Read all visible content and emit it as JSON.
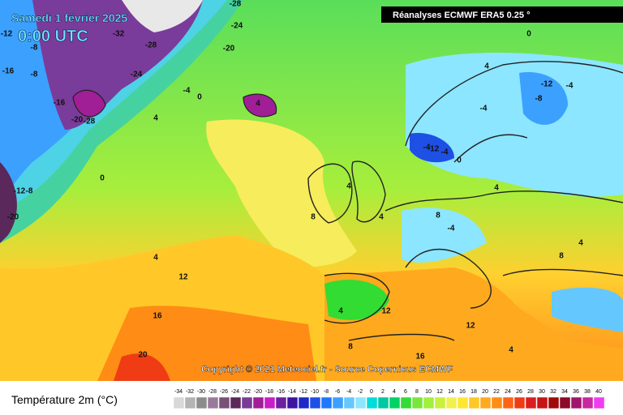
{
  "header": {
    "date": "Samedi 1 février 2025",
    "time": "0:00 UTC",
    "source_badge": "Réanalyses ECMWF ERA5 0.25 °"
  },
  "copyright": "Copyright © 2021 Meteociel.fr - Source Copernicus ECMWF",
  "legend": {
    "title": "Température 2m (°C)",
    "ticks": [
      -34,
      -32,
      -30,
      -28,
      -26,
      -24,
      -22,
      -20,
      -18,
      -16,
      -14,
      -12,
      -10,
      -8,
      -6,
      -4,
      -2,
      0,
      2,
      4,
      6,
      8,
      10,
      12,
      14,
      16,
      18,
      20,
      22,
      24,
      26,
      28,
      30,
      32,
      34,
      36,
      38,
      40
    ],
    "colors": [
      "#d8d8d8",
      "#b4b4b4",
      "#8c8c8c",
      "#9a7a9a",
      "#785078",
      "#5a285a",
      "#783c96",
      "#a01e96",
      "#c81ec8",
      "#6e1ea0",
      "#3c14a0",
      "#1e28c8",
      "#1e50e6",
      "#1e78ff",
      "#3ca0ff",
      "#64c8ff",
      "#8ce6ff",
      "#00dcdc",
      "#00c8a0",
      "#00d264",
      "#32dc32",
      "#78e63c",
      "#a0f03c",
      "#c8f03c",
      "#f0f050",
      "#ffe632",
      "#ffc828",
      "#ffaa1e",
      "#ff8c14",
      "#ff6414",
      "#f03c14",
      "#dc1e1e",
      "#c81414",
      "#a00a0a",
      "#8c0a28",
      "#a0146e",
      "#c828a0",
      "#f03cf0"
    ]
  },
  "contour_labels": [
    -28,
    -24,
    -32,
    -28,
    -20,
    -12,
    -8,
    -16,
    -8,
    -24,
    -16,
    -20,
    -28,
    -4,
    0,
    4,
    4,
    0,
    -12,
    -8,
    -20,
    4,
    0,
    8,
    4,
    12,
    16,
    20,
    4,
    -4,
    -12,
    -8,
    -4,
    -4,
    -12,
    -4,
    0,
    4,
    -4,
    4,
    8,
    4,
    8,
    4,
    12,
    16,
    12,
    8,
    4
  ]
}
